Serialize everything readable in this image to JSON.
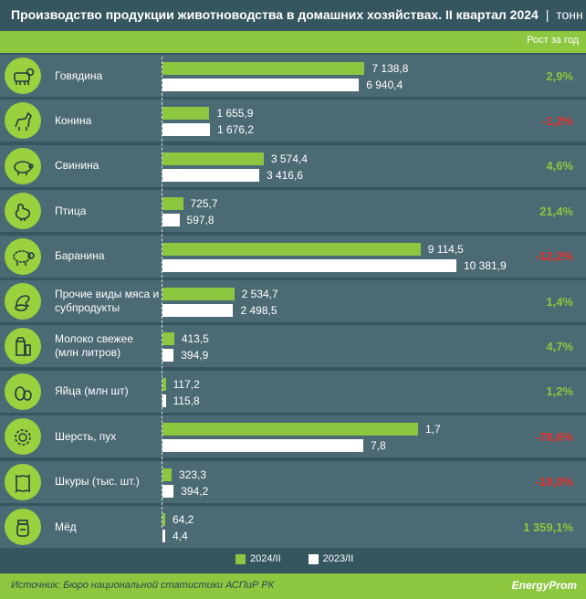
{
  "header": {
    "title": "Производство продукции животноводства в домашних хозяйствах. II квартал 2024",
    "separator": "|",
    "unit": "тонн",
    "growth_header": "Рост за год"
  },
  "legend": {
    "current": "2024/II",
    "previous": "2023/II"
  },
  "footer": {
    "source": "Источник: Бюро национальной статистики АСПиР РК",
    "logo": "EnergyProm"
  },
  "colors": {
    "current": "#8dc63f",
    "previous": "#ffffff",
    "positive": "#8dc63f",
    "negative": "#e8302d"
  },
  "chart_data": {
    "type": "bar",
    "title": "Производство продукции животноводства в домашних хозяйствах. II квартал 2024",
    "series_names": [
      "2024/II",
      "2023/II"
    ],
    "rows": [
      {
        "category": "Говядина",
        "icon": "cow-icon",
        "cur": 7138.8,
        "prev": 6940.4,
        "cur_label": "7 138,8",
        "prev_label": "6 940,4",
        "growth": "2,9%",
        "sign": "pos"
      },
      {
        "category": "Конина",
        "icon": "horse-icon",
        "cur": 1655.9,
        "prev": 1676.2,
        "cur_label": "1 655,9",
        "prev_label": "1 676,2",
        "growth": "-1,2%",
        "sign": "neg"
      },
      {
        "category": "Свинина",
        "icon": "pig-icon",
        "cur": 3574.4,
        "prev": 3416.6,
        "cur_label": "3 574,4",
        "prev_label": "3 416,6",
        "growth": "4,6%",
        "sign": "pos"
      },
      {
        "category": "Птица",
        "icon": "chicken-icon",
        "cur": 725.7,
        "prev": 597.8,
        "cur_label": "725,7",
        "prev_label": "597,8",
        "growth": "21,4%",
        "sign": "pos"
      },
      {
        "category": "Баранина",
        "icon": "sheep-icon",
        "cur": 9114.5,
        "prev": 10381.9,
        "cur_label": "9 114,5",
        "prev_label": "10 381,9",
        "growth": "-12,2%",
        "sign": "neg"
      },
      {
        "category": "Прочие виды мяса и субпродукты",
        "icon": "offal-icon",
        "cur": 2534.7,
        "prev": 2498.5,
        "cur_label": "2 534,7",
        "prev_label": "2 498,5",
        "growth": "1,4%",
        "sign": "pos"
      },
      {
        "category": "Молоко свежее (млн литров)",
        "icon": "milk-icon",
        "cur": 413.5,
        "prev": 394.9,
        "cur_label": "413,5",
        "prev_label": "394,9",
        "growth": "4,7%",
        "sign": "pos"
      },
      {
        "category": "Яйца (млн шт)",
        "icon": "egg-icon",
        "cur": 117.2,
        "prev": 115.8,
        "cur_label": "117,2",
        "prev_label": "115,8",
        "growth": "1,2%",
        "sign": "pos"
      },
      {
        "category": "Шерсть, пух",
        "icon": "wool-icon",
        "cur": 1.7,
        "prev": 7.8,
        "cur_label": "1,7",
        "prev_label": "7,8",
        "growth": "-78,6%",
        "sign": "neg"
      },
      {
        "category": "Шкуры (тыс. шт.)",
        "icon": "hide-icon",
        "cur": 323.3,
        "prev": 394.2,
        "cur_label": "323,3",
        "prev_label": "394,2",
        "growth": "-18,0%",
        "sign": "neg"
      },
      {
        "category": "Мёд",
        "icon": "honey-icon",
        "cur": 64.2,
        "prev": 4.4,
        "cur_label": "64,2",
        "prev_label": "4,4",
        "growth": "1 359,1%",
        "sign": "pos"
      }
    ]
  }
}
